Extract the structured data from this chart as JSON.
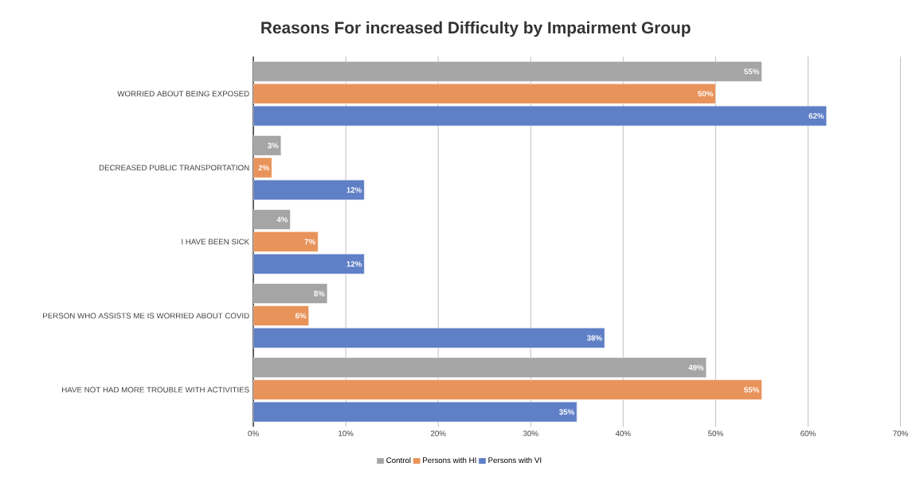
{
  "chart_data": {
    "type": "bar",
    "orientation": "horizontal",
    "title": "Reasons For increased Difficulty by Impairment Group",
    "categories": [
      "WORRIED ABOUT BEING EXPOSED",
      "DECREASED PUBLIC TRANSPORTATION",
      "I HAVE BEEN SICK",
      "PERSON WHO ASSISTS ME IS WORRIED ABOUT COVID",
      "HAVE NOT HAD MORE TROUBLE WITH ACTIVITIES"
    ],
    "series": [
      {
        "name": "Control",
        "color": "#a5a5a5",
        "values": [
          55,
          3,
          4,
          8,
          49
        ],
        "value_labels": [
          "55%",
          "3%",
          "4%",
          "8%",
          "49%"
        ]
      },
      {
        "name": "Persons with HI",
        "color": "#e8935a",
        "values": [
          50,
          2,
          7,
          6,
          55
        ],
        "value_labels": [
          "50%",
          "2%",
          "7%",
          "6%",
          "55%"
        ]
      },
      {
        "name": "Persons with VI",
        "color": "#5f7fc6",
        "values": [
          62,
          12,
          12,
          38,
          35
        ],
        "value_labels": [
          "62%",
          "12%",
          "12%",
          "38%",
          "35%"
        ]
      }
    ],
    "xlim": [
      0,
      70
    ],
    "xticks": [
      {
        "value": 0,
        "label": "0%"
      },
      {
        "value": 10,
        "label": "10%"
      },
      {
        "value": 20,
        "label": "20%"
      },
      {
        "value": 30,
        "label": "30%"
      },
      {
        "value": 40,
        "label": "40%"
      },
      {
        "value": 50,
        "label": "50%"
      },
      {
        "value": 60,
        "label": "60%"
      },
      {
        "value": 70,
        "label": "70%"
      }
    ],
    "grid": "x",
    "legend": "bottom"
  }
}
